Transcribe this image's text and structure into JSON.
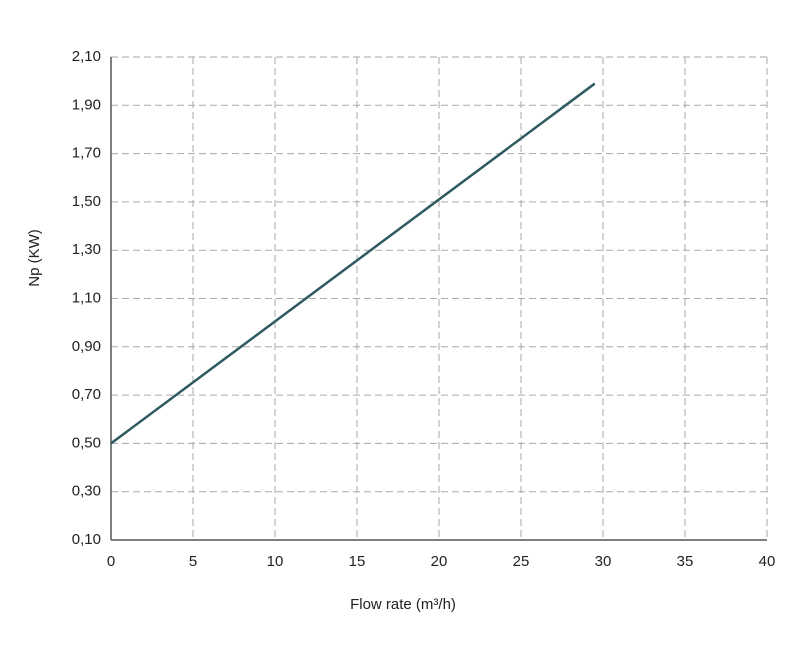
{
  "chart_data": {
    "type": "line",
    "x_label": "Flow rate (m³/h)",
    "y_label": "Np (KW)",
    "x": [
      0,
      29.5
    ],
    "series": [
      {
        "name": "Np",
        "color": "#2e5a60",
        "values": [
          0.5,
          1.99
        ]
      }
    ],
    "xlim": [
      0,
      40
    ],
    "xticks": [
      0,
      5,
      10,
      15,
      20,
      25,
      30,
      35,
      40
    ],
    "ylim": [
      0.1,
      2.1
    ],
    "yticks": [
      {
        "value": 0.1,
        "label": "0,10"
      },
      {
        "value": 0.3,
        "label": "0,30"
      },
      {
        "value": 0.5,
        "label": "0,50"
      },
      {
        "value": 0.7,
        "label": "0,70"
      },
      {
        "value": 0.9,
        "label": "0,90"
      },
      {
        "value": 1.1,
        "label": "1,10"
      },
      {
        "value": 1.3,
        "label": "1,30"
      },
      {
        "value": 1.5,
        "label": "1,50"
      },
      {
        "value": 1.7,
        "label": "1,70"
      },
      {
        "value": 1.9,
        "label": "1,90"
      },
      {
        "value": 2.1,
        "label": "2,10"
      }
    ],
    "grid": true
  }
}
